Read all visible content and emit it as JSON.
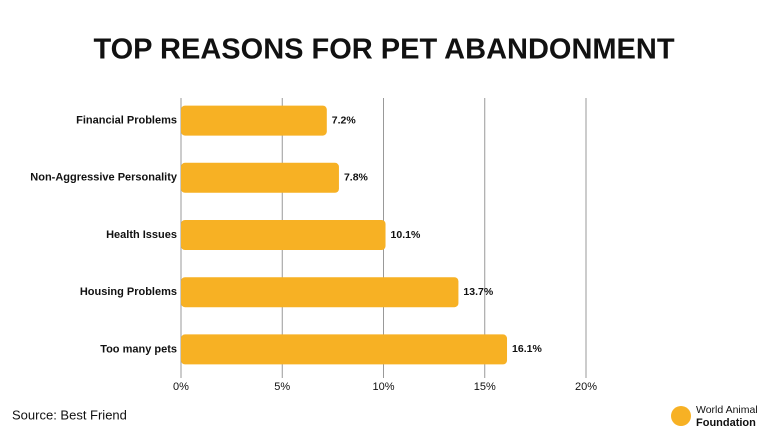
{
  "chart_data": {
    "type": "barh",
    "title": "TOP REASONS FOR PET ABANDONMENT",
    "categories": [
      "Financial Problems",
      "Non-Aggressive Personality",
      "Health Issues",
      "Housing Problems",
      "Too many pets"
    ],
    "values": [
      7.2,
      7.8,
      10.1,
      13.7,
      16.1
    ],
    "value_labels": [
      "7.2%",
      "7.8%",
      "10.1%",
      "13.7%",
      "16.1%"
    ],
    "color": "#f7b124",
    "xlim": [
      0,
      20
    ],
    "xticks": [
      {
        "value": 0,
        "label": "0%"
      },
      {
        "value": 5,
        "label": "5%"
      },
      {
        "value": 10,
        "label": "10%"
      },
      {
        "value": 15,
        "label": "15%"
      },
      {
        "value": 20,
        "label": "20%"
      }
    ],
    "grid": true,
    "source": "Source: Best Friend"
  },
  "logo": {
    "line1": "World Animal",
    "line2": "Foundation"
  }
}
